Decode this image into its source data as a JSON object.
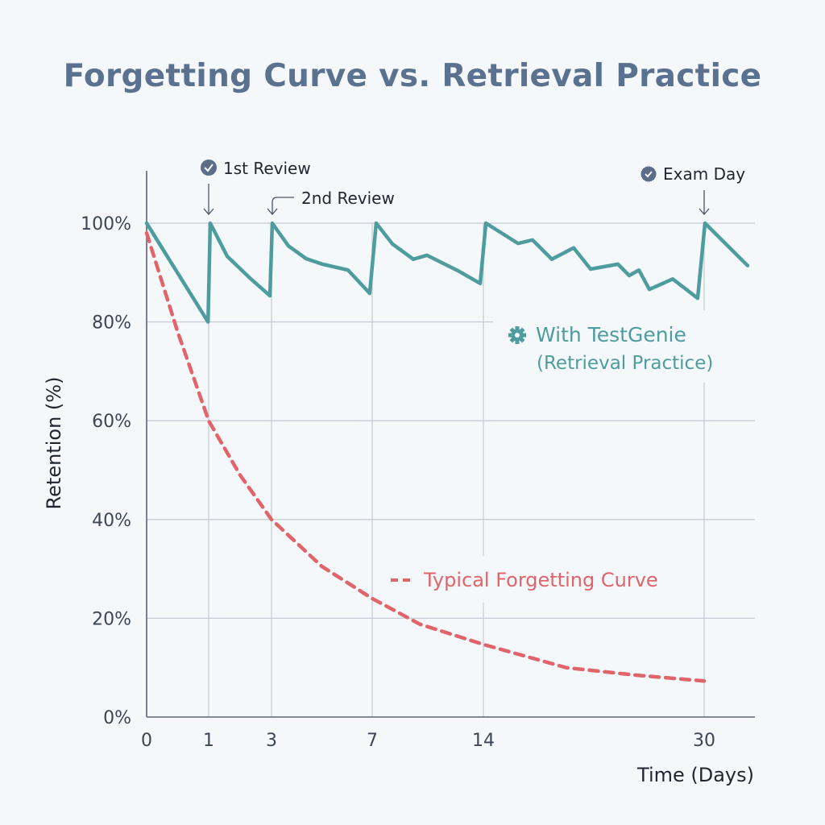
{
  "chart_data": {
    "type": "line",
    "title": "Forgetting Curve vs. Retrieval Practice",
    "xlabel": "Time (Days)",
    "ylabel": "Retention (%)",
    "x_ticks": [
      0,
      1,
      3,
      7,
      14,
      30
    ],
    "y_ticks": [
      "0%",
      "20%",
      "40%",
      "60%",
      "80%",
      "100%"
    ],
    "ylim": [
      0,
      100
    ],
    "xlim": [
      0,
      33.7
    ],
    "x_scale": "non-linear (ticks unevenly spaced)",
    "grid": true,
    "colors": {
      "retrieval": "#4f9c9e",
      "forgetting": "#e0646a",
      "title": "#5b7190"
    },
    "series": [
      {
        "name": "With TestGenie (Retrieval Practice)",
        "label_line1": "With TestGenie",
        "label_line2": "(Retrieval Practice)",
        "icon": "gear-icon",
        "style": "solid",
        "x": [
          0,
          0.99,
          1.05,
          1.59,
          2.31,
          2.95,
          3.03,
          3.67,
          4.38,
          5.02,
          6.04,
          6.9,
          7.25,
          8.27,
          9.59,
          10.45,
          12.38,
          13.8,
          14.18,
          16.51,
          17.56,
          18.96,
          20.54,
          21.77,
          23.75,
          24.57,
          25.27,
          26.03,
          27.72,
          29.53,
          30.06,
          33.15
        ],
        "y": [
          100,
          80,
          100,
          93.3,
          88.9,
          85.3,
          100,
          95.4,
          92.8,
          91.7,
          90.5,
          85.8,
          100,
          95.8,
          92.7,
          93.5,
          90.4,
          87.8,
          100,
          95.9,
          96.6,
          92.7,
          95.0,
          90.7,
          91.7,
          89.4,
          90.5,
          86.6,
          88.7,
          84.8,
          100,
          91.4
        ]
      },
      {
        "name": "Typical Forgetting Curve",
        "style": "dashed",
        "x": [
          0,
          0.5,
          1,
          2,
          3,
          5,
          7,
          10,
          14,
          20,
          25,
          30
        ],
        "y": [
          98,
          78,
          60,
          49,
          40,
          30.5,
          24,
          18.8,
          14.7,
          10,
          8.5,
          7.3
        ]
      }
    ],
    "annotations": [
      {
        "text": "1st Review",
        "x": 1,
        "icon": "check-circle-icon"
      },
      {
        "text": "2nd Review",
        "x": 3
      },
      {
        "text": "Exam Day",
        "x": 30,
        "icon": "badge-check-icon"
      }
    ]
  }
}
